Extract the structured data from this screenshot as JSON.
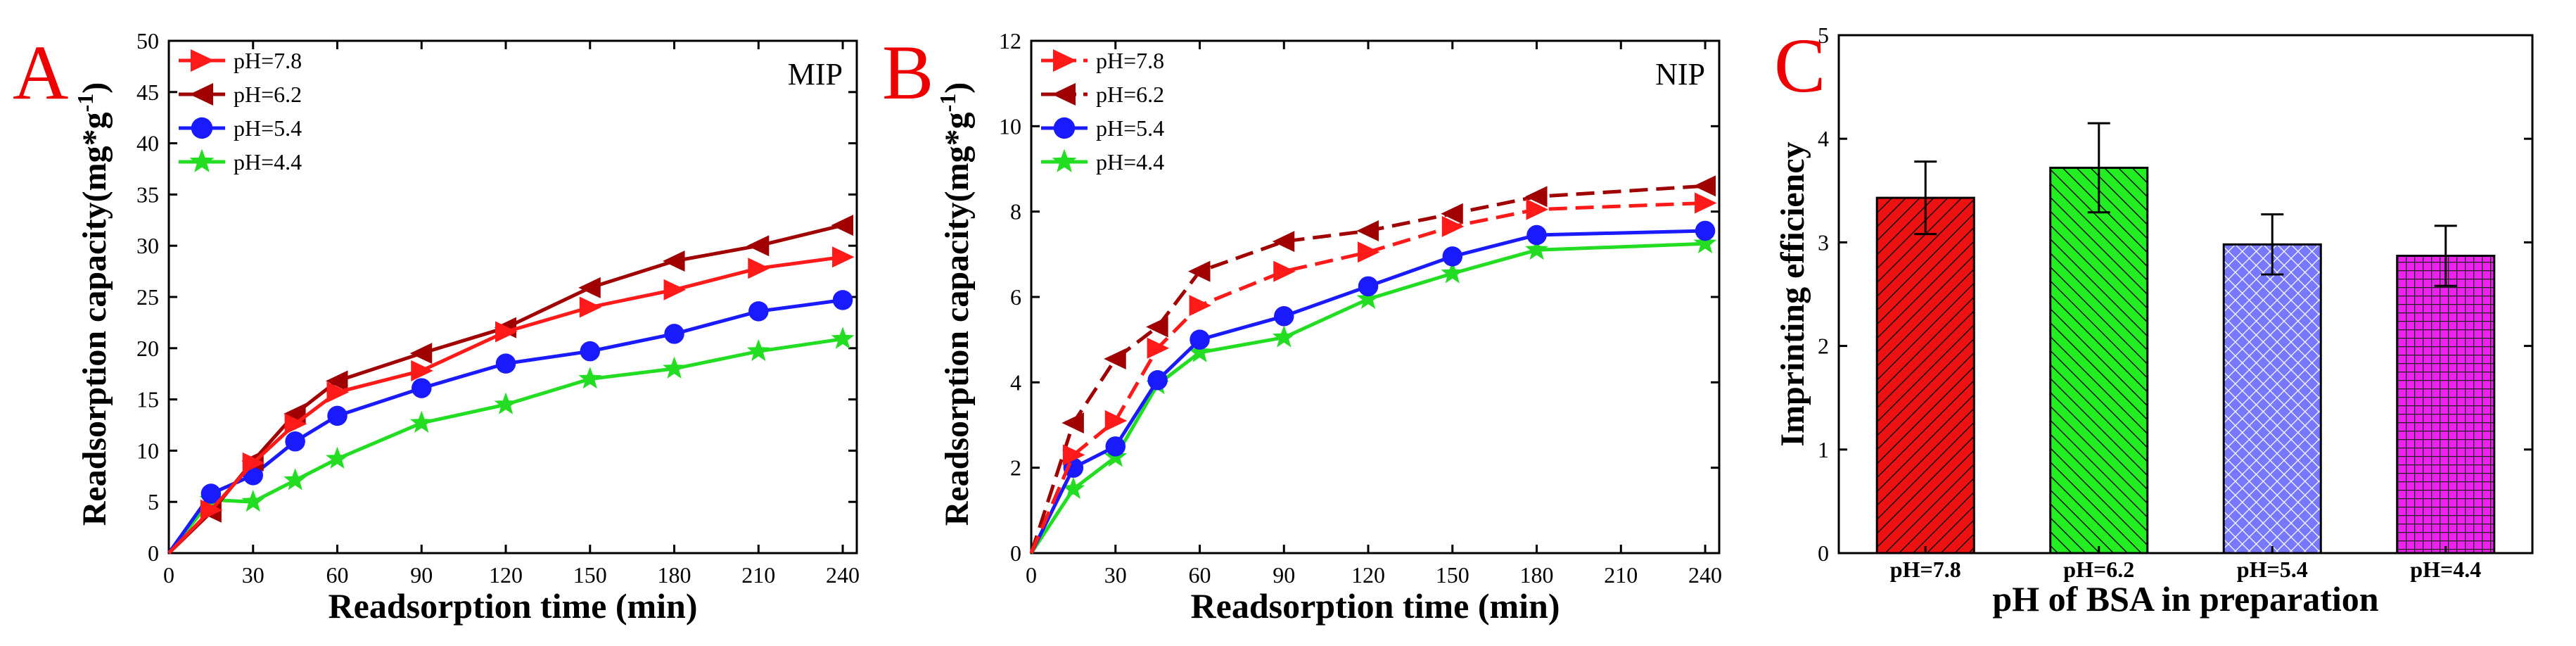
{
  "chart_data": [
    {
      "type": "line",
      "panel_label": "A",
      "title": "MIP",
      "xlabel": "Readsorption time (min)",
      "ylabel": "Readsorption capacity(mg*g",
      "ylabel_sup": "-1",
      "ylabel_close": ")",
      "xlim": [
        0,
        245
      ],
      "ylim": [
        0,
        50
      ],
      "xticks": [
        0,
        30,
        60,
        90,
        120,
        150,
        180,
        210,
        240
      ],
      "yticks": [
        0,
        5,
        10,
        15,
        20,
        25,
        30,
        35,
        40,
        45,
        50
      ],
      "legend_position": "top-left",
      "series": [
        {
          "name": "pH=7.8",
          "color": "#ff1a1a",
          "marker": "tri-right",
          "x": [
            0,
            15,
            30,
            45,
            60,
            90,
            120,
            150,
            180,
            210,
            240
          ],
          "y": [
            0,
            4.2,
            8.8,
            12.6,
            15.7,
            17.8,
            21.6,
            24.0,
            25.7,
            27.8,
            28.9
          ]
        },
        {
          "name": "pH=6.2",
          "color": "#a00000",
          "marker": "tri-left",
          "x": [
            0,
            15,
            30,
            45,
            60,
            90,
            120,
            150,
            180,
            210,
            240
          ],
          "y": [
            0,
            4.0,
            9.0,
            13.6,
            16.8,
            19.5,
            22.0,
            25.9,
            28.5,
            30.0,
            32.0
          ]
        },
        {
          "name": "pH=5.4",
          "color": "#1a1aff",
          "marker": "circle",
          "x": [
            0,
            15,
            30,
            45,
            60,
            90,
            120,
            150,
            180,
            210,
            240
          ],
          "y": [
            0,
            5.8,
            7.6,
            10.9,
            13.4,
            16.1,
            18.5,
            19.7,
            21.4,
            23.6,
            24.7
          ]
        },
        {
          "name": "pH=4.4",
          "color": "#22dd22",
          "marker": "star",
          "x": [
            0,
            15,
            30,
            45,
            60,
            90,
            120,
            150,
            180,
            210,
            240
          ],
          "y": [
            0,
            5.2,
            5.0,
            7.1,
            9.2,
            12.7,
            14.5,
            17.0,
            18.0,
            19.7,
            20.9
          ]
        }
      ]
    },
    {
      "type": "line",
      "panel_label": "B",
      "title": "NIP",
      "xlabel": "Readsorption time (min)",
      "ylabel": "Readsorption capacity(mg*g",
      "ylabel_sup": "-1",
      "ylabel_close": ")",
      "xlim": [
        0,
        245
      ],
      "ylim": [
        0,
        12
      ],
      "xticks": [
        0,
        30,
        60,
        90,
        120,
        150,
        180,
        210,
        240
      ],
      "yticks": [
        0,
        2,
        4,
        6,
        8,
        10,
        12
      ],
      "legend_position": "top-left",
      "series": [
        {
          "name": "pH=7.8",
          "color": "#ff1a1a",
          "marker": "tri-right",
          "dashed": true,
          "x": [
            0,
            15,
            30,
            45,
            60,
            90,
            120,
            150,
            180,
            240
          ],
          "y": [
            0,
            2.3,
            3.1,
            4.8,
            5.8,
            6.6,
            7.05,
            7.65,
            8.05,
            8.2
          ]
        },
        {
          "name": "pH=6.2",
          "color": "#a00000",
          "marker": "tri-left",
          "dashed": true,
          "x": [
            0,
            15,
            30,
            45,
            60,
            90,
            120,
            150,
            180,
            240
          ],
          "y": [
            0,
            3.05,
            4.55,
            5.3,
            6.6,
            7.3,
            7.55,
            7.95,
            8.35,
            8.6
          ]
        },
        {
          "name": "pH=5.4",
          "color": "#1a1aff",
          "marker": "circle",
          "x": [
            0,
            15,
            30,
            45,
            60,
            90,
            120,
            150,
            180,
            240
          ],
          "y": [
            0,
            2.0,
            2.5,
            4.05,
            5.0,
            5.55,
            6.25,
            6.95,
            7.45,
            7.55
          ]
        },
        {
          "name": "pH=4.4",
          "color": "#22dd22",
          "marker": "star",
          "x": [
            0,
            15,
            30,
            45,
            60,
            90,
            120,
            150,
            180,
            240
          ],
          "y": [
            0,
            1.5,
            2.25,
            3.95,
            4.7,
            5.05,
            5.95,
            6.55,
            7.1,
            7.25
          ]
        }
      ]
    },
    {
      "type": "bar",
      "panel_label": "C",
      "title": "",
      "xlabel": "pH of BSA in preparation",
      "ylabel": "Imprinting efficiency",
      "ylim": [
        0,
        5
      ],
      "yticks": [
        0,
        1,
        2,
        3,
        4,
        5
      ],
      "categories": [
        "pH=7.8",
        "pH=6.2",
        "pH=5.4",
        "pH=4.4"
      ],
      "values": [
        3.43,
        3.72,
        2.98,
        2.87
      ],
      "errors": [
        0.35,
        0.43,
        0.29,
        0.29
      ],
      "colors": [
        "#ee1111",
        "#22ee22",
        "#7777ff",
        "#ee22ee"
      ],
      "hatches": [
        "diag-right",
        "diag-left",
        "crosshatch",
        "grid"
      ]
    }
  ]
}
